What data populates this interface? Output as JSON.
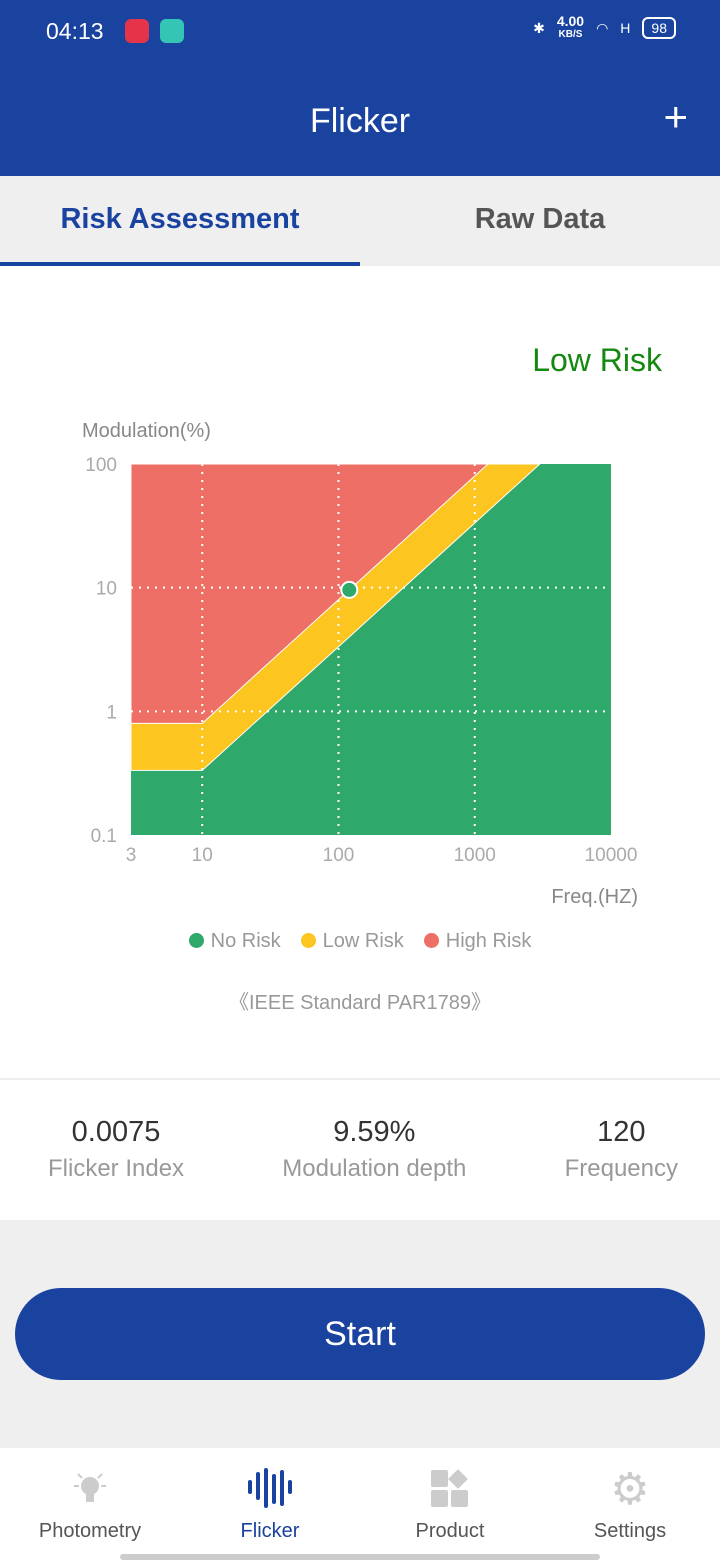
{
  "status": {
    "time": "04:13",
    "speed": "4.00",
    "speed_unit": "KB/S",
    "network": "H",
    "battery": "98"
  },
  "header": {
    "title": "Flicker",
    "add_label": "+"
  },
  "tabs": [
    {
      "label": "Risk Assessment",
      "active": true
    },
    {
      "label": "Raw Data",
      "active": false
    }
  ],
  "result": {
    "risk_label": "Low Risk"
  },
  "chart_data": {
    "type": "area",
    "ylabel": "Modulation(%)",
    "xlabel": "Freq.(HZ)",
    "xscale": "log",
    "yscale": "log",
    "xlim": [
      3,
      10000
    ],
    "ylim": [
      0.1,
      100
    ],
    "x_ticks": [
      "3",
      "10",
      "100",
      "1000",
      "10000"
    ],
    "y_ticks": [
      "100",
      "10",
      "1",
      "0.1"
    ],
    "grid": true,
    "regions": [
      {
        "name": "High Risk",
        "color": "#ee6f66",
        "boundary": "above 0.8 for f<10; above 0.08*f for f>=10"
      },
      {
        "name": "Low Risk",
        "color": "#fcc520",
        "boundary": "between lines"
      },
      {
        "name": "No Risk",
        "color": "#2ea86b",
        "boundary": "below 0.333 for f<10; below 0.0333*f for f>=10"
      }
    ],
    "high_line": {
      "flat": 0.8,
      "slope": 0.08
    },
    "low_line": {
      "flat": 0.333,
      "slope": 0.0333
    },
    "point": {
      "x": 120,
      "y": 9.59,
      "color": "#2ea86b"
    },
    "legend": [
      {
        "label": "No Risk",
        "color": "#2ea86b"
      },
      {
        "label": "Low Risk",
        "color": "#fcc520"
      },
      {
        "label": "High Risk",
        "color": "#ee6f66"
      }
    ],
    "legend_position": "bottom"
  },
  "standard": "《IEEE Standard PAR1789》",
  "stats": [
    {
      "value": "0.0075",
      "label": "Flicker Index"
    },
    {
      "value": "9.59%",
      "label": "Modulation depth"
    },
    {
      "value": "120",
      "label": "Frequency"
    }
  ],
  "start_label": "Start",
  "nav": [
    {
      "label": "Photometry"
    },
    {
      "label": "Flicker",
      "active": true
    },
    {
      "label": "Product"
    },
    {
      "label": "Settings"
    }
  ]
}
